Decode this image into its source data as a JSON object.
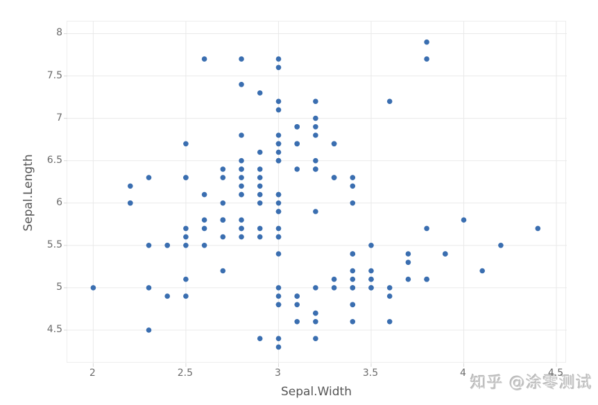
{
  "watermark": {
    "text": "知乎 @涂零测试",
    "color": "#c8c8c8"
  },
  "chart_data": {
    "type": "scatter",
    "title": "",
    "xlabel": "Sepal.Width",
    "ylabel": "Sepal.Length",
    "x_ticks": [
      2,
      2.5,
      3,
      3.5,
      4,
      4.5
    ],
    "y_ticks": [
      4.5,
      5,
      5.5,
      6,
      6.5,
      7,
      7.5,
      8
    ],
    "x_range": [
      1.86,
      4.556
    ],
    "y_range": [
      4.107,
      8.143
    ],
    "grid": true,
    "legend_position": "none",
    "point_color": "#3a6eb0",
    "point_radius": 3.8,
    "grid_color": "#e9e9e9",
    "tick_mark_color": "#d8d8d8",
    "axis_text_color": "#6a6a6a",
    "axis_title_color": "#555555",
    "points": [
      [
        3.5,
        5.1
      ],
      [
        3.0,
        4.9
      ],
      [
        3.2,
        4.7
      ],
      [
        3.1,
        4.6
      ],
      [
        3.6,
        5.0
      ],
      [
        3.9,
        5.4
      ],
      [
        3.4,
        4.6
      ],
      [
        3.4,
        5.0
      ],
      [
        2.9,
        4.4
      ],
      [
        3.1,
        4.9
      ],
      [
        3.7,
        5.4
      ],
      [
        3.4,
        4.8
      ],
      [
        3.0,
        4.8
      ],
      [
        3.0,
        4.3
      ],
      [
        4.0,
        5.8
      ],
      [
        4.4,
        5.7
      ],
      [
        3.9,
        5.4
      ],
      [
        3.5,
        5.1
      ],
      [
        3.8,
        5.7
      ],
      [
        3.8,
        5.1
      ],
      [
        3.4,
        5.4
      ],
      [
        3.7,
        5.1
      ],
      [
        3.6,
        4.6
      ],
      [
        3.3,
        5.1
      ],
      [
        3.4,
        4.8
      ],
      [
        3.0,
        5.0
      ],
      [
        3.4,
        5.0
      ],
      [
        3.5,
        5.2
      ],
      [
        3.4,
        5.2
      ],
      [
        3.2,
        4.7
      ],
      [
        3.1,
        4.8
      ],
      [
        3.4,
        5.4
      ],
      [
        4.1,
        5.2
      ],
      [
        4.2,
        5.5
      ],
      [
        3.1,
        4.9
      ],
      [
        3.2,
        5.0
      ],
      [
        3.5,
        5.5
      ],
      [
        3.6,
        4.9
      ],
      [
        3.0,
        4.4
      ],
      [
        3.4,
        5.1
      ],
      [
        3.5,
        5.0
      ],
      [
        2.3,
        4.5
      ],
      [
        3.2,
        4.4
      ],
      [
        3.5,
        5.0
      ],
      [
        3.8,
        5.1
      ],
      [
        3.0,
        4.8
      ],
      [
        3.8,
        5.1
      ],
      [
        3.2,
        4.6
      ],
      [
        3.7,
        5.3
      ],
      [
        3.3,
        5.0
      ],
      [
        3.2,
        7.0
      ],
      [
        3.2,
        6.4
      ],
      [
        3.1,
        6.9
      ],
      [
        2.3,
        5.5
      ],
      [
        2.8,
        6.5
      ],
      [
        2.8,
        5.7
      ],
      [
        3.3,
        6.3
      ],
      [
        2.4,
        4.9
      ],
      [
        2.9,
        6.6
      ],
      [
        2.7,
        5.2
      ],
      [
        2.0,
        5.0
      ],
      [
        3.0,
        5.9
      ],
      [
        2.2,
        6.0
      ],
      [
        2.9,
        6.1
      ],
      [
        2.9,
        5.6
      ],
      [
        3.1,
        6.7
      ],
      [
        3.0,
        5.6
      ],
      [
        2.7,
        5.8
      ],
      [
        2.2,
        6.2
      ],
      [
        2.5,
        5.6
      ],
      [
        3.2,
        5.9
      ],
      [
        2.8,
        6.1
      ],
      [
        2.5,
        6.3
      ],
      [
        2.8,
        6.1
      ],
      [
        2.9,
        6.4
      ],
      [
        3.0,
        6.6
      ],
      [
        2.8,
        6.8
      ],
      [
        3.0,
        6.7
      ],
      [
        2.9,
        6.0
      ],
      [
        2.6,
        5.7
      ],
      [
        2.4,
        5.5
      ],
      [
        2.4,
        5.5
      ],
      [
        2.7,
        5.8
      ],
      [
        2.7,
        6.0
      ],
      [
        3.0,
        5.4
      ],
      [
        3.4,
        6.0
      ],
      [
        3.1,
        6.7
      ],
      [
        2.3,
        6.3
      ],
      [
        3.0,
        5.6
      ],
      [
        2.5,
        5.5
      ],
      [
        2.6,
        5.5
      ],
      [
        3.0,
        6.1
      ],
      [
        2.6,
        5.8
      ],
      [
        2.3,
        5.0
      ],
      [
        2.7,
        5.6
      ],
      [
        3.0,
        5.7
      ],
      [
        2.9,
        5.7
      ],
      [
        2.9,
        6.2
      ],
      [
        2.5,
        5.1
      ],
      [
        2.8,
        5.7
      ],
      [
        3.3,
        6.3
      ],
      [
        2.7,
        5.8
      ],
      [
        3.0,
        7.1
      ],
      [
        2.9,
        6.3
      ],
      [
        3.0,
        6.5
      ],
      [
        3.0,
        7.6
      ],
      [
        2.5,
        4.9
      ],
      [
        2.9,
        7.3
      ],
      [
        2.5,
        6.7
      ],
      [
        3.6,
        7.2
      ],
      [
        3.2,
        6.5
      ],
      [
        2.7,
        6.4
      ],
      [
        3.0,
        6.8
      ],
      [
        2.5,
        5.7
      ],
      [
        2.8,
        5.8
      ],
      [
        3.2,
        6.4
      ],
      [
        3.0,
        6.5
      ],
      [
        3.8,
        7.7
      ],
      [
        2.6,
        7.7
      ],
      [
        2.2,
        6.0
      ],
      [
        3.2,
        6.9
      ],
      [
        2.8,
        5.6
      ],
      [
        2.8,
        7.7
      ],
      [
        2.7,
        6.3
      ],
      [
        3.3,
        6.7
      ],
      [
        3.2,
        7.2
      ],
      [
        2.8,
        6.2
      ],
      [
        3.0,
        6.1
      ],
      [
        2.8,
        6.4
      ],
      [
        3.0,
        7.2
      ],
      [
        2.8,
        7.4
      ],
      [
        3.8,
        7.9
      ],
      [
        2.8,
        6.4
      ],
      [
        2.8,
        6.3
      ],
      [
        2.6,
        6.1
      ],
      [
        3.0,
        7.7
      ],
      [
        3.4,
        6.3
      ],
      [
        3.1,
        6.4
      ],
      [
        3.0,
        6.0
      ],
      [
        3.1,
        6.9
      ],
      [
        3.1,
        6.7
      ],
      [
        3.1,
        6.9
      ],
      [
        2.7,
        5.8
      ],
      [
        3.2,
        6.8
      ],
      [
        3.3,
        6.7
      ],
      [
        3.0,
        6.7
      ],
      [
        2.5,
        6.3
      ],
      [
        3.0,
        6.5
      ],
      [
        3.4,
        6.2
      ],
      [
        3.0,
        5.9
      ]
    ]
  }
}
